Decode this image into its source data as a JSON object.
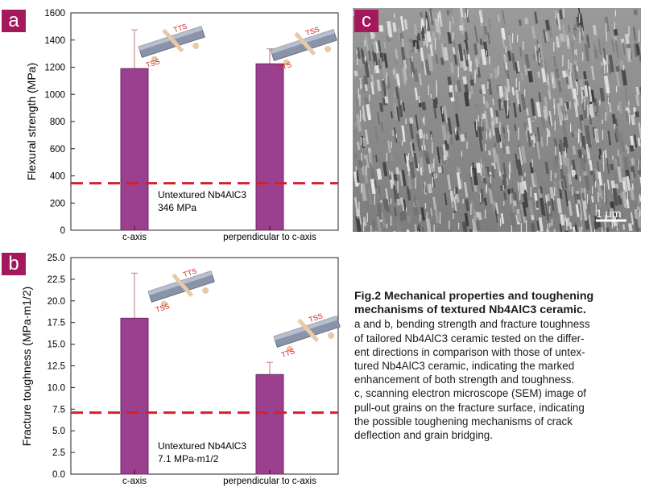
{
  "panels": {
    "a": "a",
    "b": "b",
    "c": "c"
  },
  "chart_data": [
    {
      "type": "bar",
      "ylabel": "Flexural strength (MPa)",
      "ylim": [
        0,
        1600
      ],
      "yticks": [
        "0",
        "200",
        "400",
        "600",
        "800",
        "1000",
        "1200",
        "1400",
        "1600"
      ],
      "categories": [
        "c-axis",
        "perpendicular to c-axis"
      ],
      "values": [
        1190,
        1225
      ],
      "errors": [
        285,
        110
      ],
      "reference": {
        "value": 346,
        "label_line1": "Untextured Nb4AlC3",
        "label_line2": "346 MPa"
      },
      "insets": [
        {
          "tss": "TSS",
          "tts": "TTS"
        },
        {
          "tss": "TTS",
          "tts": "TSS"
        }
      ]
    },
    {
      "type": "bar",
      "ylabel": "Fracture toughness (MPa·m1/2)",
      "ylim": [
        0,
        25
      ],
      "yticks": [
        "0.0",
        "2.5",
        "5.0",
        "7.5",
        "10.0",
        "12.5",
        "15.0",
        "17.5",
        "20.0",
        "22.5",
        "25.0"
      ],
      "categories": [
        "c-axis",
        "perpendicular to c-axis"
      ],
      "values": [
        18.0,
        11.5
      ],
      "errors": [
        5.2,
        1.4
      ],
      "reference": {
        "value": 7.1,
        "label_line1": "Untextured Nb4AlC3",
        "label_line2": "7.1 MPa-m1/2"
      },
      "insets": [
        {
          "tss": "TSS",
          "tts": "TTS"
        },
        {
          "tss": "TTS",
          "tts": "TSS"
        }
      ]
    }
  ],
  "sem": {
    "scale_bar": "1 μm"
  },
  "caption": {
    "title1": "Fig.2 Mechanical properties and toughening",
    "title2": "mechanisms of textured Nb4AlC3 ceramic.",
    "lines": [
      "a and b, bending strength and fracture toughness",
      "of tailored Nb4AlC3 ceramic tested on the differ-",
      "ent directions in comparison with those of untex-",
      "tured Nb4AlC3 ceramic, indicating the marked",
      "enhancement of both strength and toughness.",
      "c, scanning electron microscope (SEM) image of",
      "pull-out grains on the fracture surface, indicating",
      "the possible toughening mechanisms of crack",
      "deflection and grain bridging."
    ]
  },
  "colors": {
    "bar": "#9b3f8f",
    "bar_edge": "#6e2a66",
    "reference": "#d42028",
    "panel": "#a3195b",
    "error": "#c98f93"
  }
}
